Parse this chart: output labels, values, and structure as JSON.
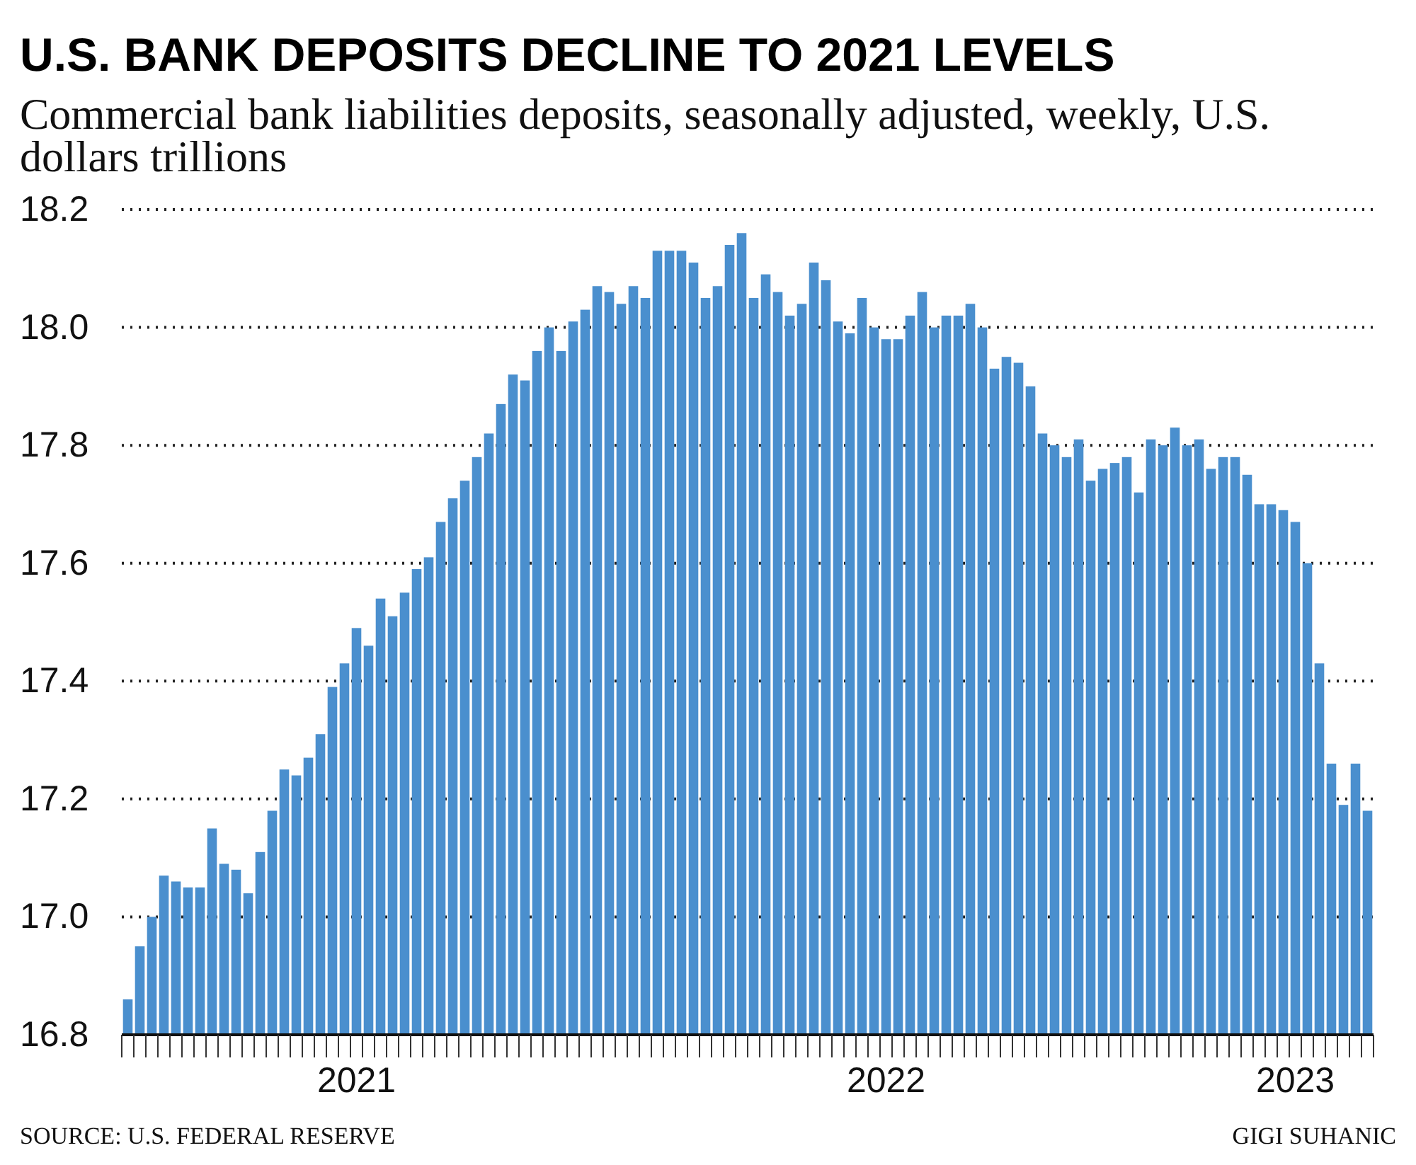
{
  "chart_data": {
    "type": "bar",
    "title": "U.S. BANK DEPOSITS DECLINE TO 2021 LEVELS",
    "subtitle": "Commercial bank liabilities deposits, seasonally adjusted, weekly, U.S. dollars trillions",
    "annotations": [
      "SOURCE: U.S. FEDERAL RESERVE",
      "GIGI SUHANIC"
    ],
    "categories": [
      null,
      null,
      null,
      null,
      null,
      null,
      null,
      null,
      null,
      null,
      null,
      null,
      null,
      null,
      null,
      null,
      null,
      null,
      null,
      "2021",
      null,
      null,
      null,
      null,
      null,
      null,
      null,
      null,
      null,
      null,
      null,
      null,
      null,
      null,
      null,
      null,
      null,
      null,
      null,
      null,
      null,
      null,
      null,
      null,
      null,
      null,
      null,
      null,
      null,
      null,
      null,
      null,
      null,
      null,
      null,
      null,
      null,
      null,
      null,
      null,
      null,
      null,
      null,
      "2022",
      null,
      null,
      null,
      null,
      null,
      null,
      null,
      null,
      null,
      null,
      null,
      null,
      null,
      null,
      null,
      null,
      null,
      null,
      null,
      null,
      null,
      null,
      null,
      null,
      null,
      null,
      null,
      null,
      null,
      null,
      null,
      null,
      null,
      "2023",
      null,
      null,
      null,
      null,
      null,
      null
    ],
    "values": [
      16.86,
      16.95,
      17.0,
      17.07,
      17.06,
      17.05,
      17.05,
      17.15,
      17.09,
      17.08,
      17.04,
      17.11,
      17.18,
      17.25,
      17.24,
      17.27,
      17.31,
      17.39,
      17.43,
      17.49,
      17.46,
      17.54,
      17.51,
      17.55,
      17.59,
      17.61,
      17.67,
      17.71,
      17.74,
      17.78,
      17.82,
      17.87,
      17.92,
      17.91,
      17.96,
      18.0,
      17.96,
      18.01,
      18.03,
      18.07,
      18.06,
      18.04,
      18.07,
      18.05,
      18.13,
      18.13,
      18.13,
      18.11,
      18.05,
      18.07,
      18.14,
      18.16,
      18.05,
      18.09,
      18.06,
      18.02,
      18.04,
      18.11,
      18.08,
      18.01,
      17.99,
      18.05,
      18.0,
      17.98,
      17.98,
      18.02,
      18.06,
      18.0,
      18.02,
      18.02,
      18.04,
      18.0,
      17.93,
      17.95,
      17.94,
      17.9,
      17.82,
      17.8,
      17.78,
      17.81,
      17.74,
      17.76,
      17.77,
      17.78,
      17.72,
      17.81,
      17.8,
      17.83,
      17.8,
      17.81,
      17.76,
      17.78,
      17.78,
      17.75,
      17.7,
      17.7,
      17.69,
      17.67,
      17.6,
      17.43,
      17.26,
      17.19,
      17.26,
      17.18
    ],
    "color": "#4a8fce",
    "ylim": [
      16.8,
      18.2
    ],
    "yticks": [
      {
        "value": 16.8,
        "label": "16.8"
      },
      {
        "value": 17.0,
        "label": "17.0"
      },
      {
        "value": 17.2,
        "label": "17.2"
      },
      {
        "value": 17.4,
        "label": "17.4"
      },
      {
        "value": 17.6,
        "label": "17.6"
      },
      {
        "value": 17.8,
        "label": "17.8"
      },
      {
        "value": 18.0,
        "label": "18.0"
      },
      {
        "value": 18.2,
        "label": "18.2"
      }
    ],
    "grid": "y"
  }
}
